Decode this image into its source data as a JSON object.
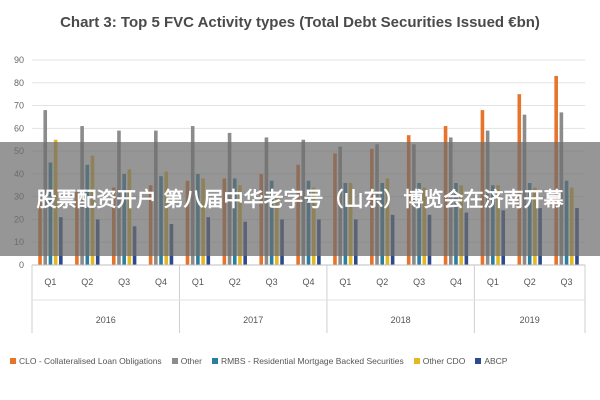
{
  "chart_data": {
    "type": "bar",
    "title": "Chart 3: Top 5 FVC Activity types (Total Debt Securities Issued €bn)",
    "ylim": [
      0,
      90
    ],
    "yticks": [
      0,
      10,
      20,
      30,
      40,
      50,
      60,
      70,
      80,
      90
    ],
    "grid": true,
    "legend_position": "bottom",
    "categories": [
      "Q1",
      "Q2",
      "Q3",
      "Q4",
      "Q1",
      "Q2",
      "Q3",
      "Q4",
      "Q1",
      "Q2",
      "Q3",
      "Q4",
      "Q1",
      "Q2",
      "Q3"
    ],
    "groups": [
      {
        "label": "2016",
        "count": 4
      },
      {
        "label": "2017",
        "count": 4
      },
      {
        "label": "2018",
        "count": 4
      },
      {
        "label": "2019",
        "count": 3
      }
    ],
    "series": [
      {
        "name": "CLO - Collateralised Loan Obligations",
        "color": "#e8732a",
        "values": [
          30,
          32,
          34,
          35,
          37,
          38,
          40,
          44,
          49,
          51,
          57,
          61,
          68,
          75,
          83
        ]
      },
      {
        "name": "Other",
        "color": "#8c8c8c",
        "values": [
          68,
          61,
          59,
          59,
          61,
          58,
          56,
          55,
          52,
          53,
          53,
          56,
          59,
          66,
          67
        ]
      },
      {
        "name": "RMBS - Residential Mortgage Backed Securities",
        "color": "#2a7fa0",
        "values": [
          45,
          44,
          40,
          39,
          40,
          38,
          37,
          37,
          36,
          36,
          36,
          36,
          35,
          36,
          37
        ]
      },
      {
        "name": "Other CDO",
        "color": "#e6b820",
        "values": [
          55,
          48,
          42,
          41,
          38,
          35,
          32,
          34,
          36,
          38,
          34,
          35,
          35,
          34,
          34
        ]
      },
      {
        "name": "ABCP",
        "color": "#2c4a8c",
        "values": [
          21,
          20,
          17,
          18,
          21,
          19,
          20,
          20,
          20,
          22,
          22,
          23,
          24,
          25,
          25
        ]
      }
    ]
  },
  "overlay": {
    "text": "股票配资开户 第八届中华老字号（山东）博览会在济南开幕"
  }
}
